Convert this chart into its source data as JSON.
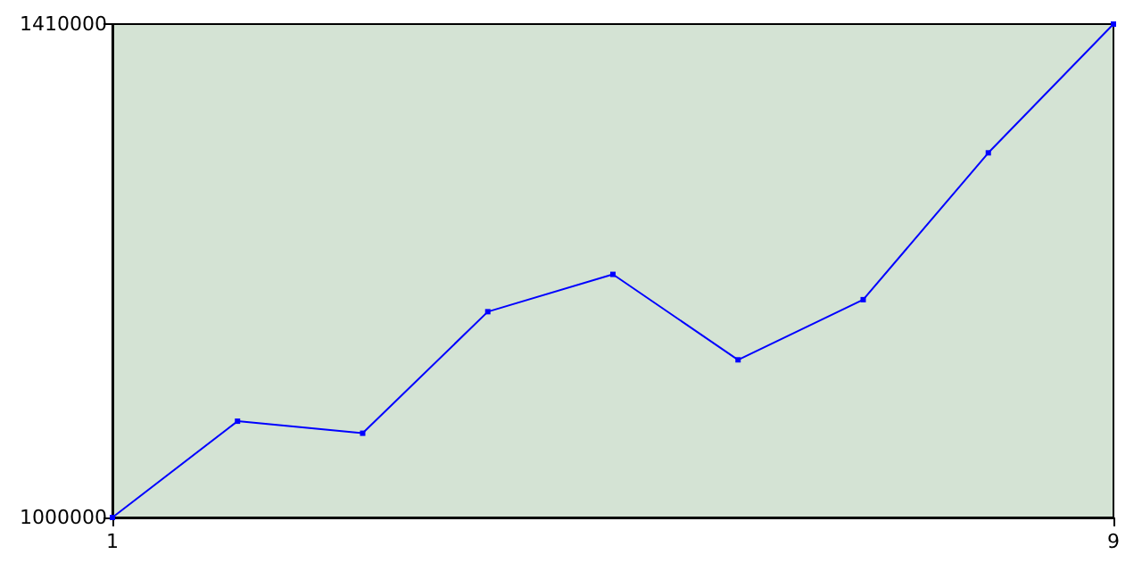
{
  "chart_data": {
    "type": "line",
    "x": [
      1,
      2,
      3,
      4,
      5,
      6,
      7,
      8,
      9
    ],
    "series": [
      {
        "color": "#0000ff",
        "values": [
          1000000,
          1080000,
          1070000,
          1171000,
          1202000,
          1131000,
          1181000,
          1303000,
          1410000
        ]
      }
    ],
    "xlim": [
      1,
      9
    ],
    "xticks": [
      1,
      9
    ],
    "ylim": [
      1000000,
      1410000
    ],
    "yticks": [
      1000000,
      1410000
    ],
    "grid": false,
    "marker": "square",
    "line_style": "solid"
  }
}
